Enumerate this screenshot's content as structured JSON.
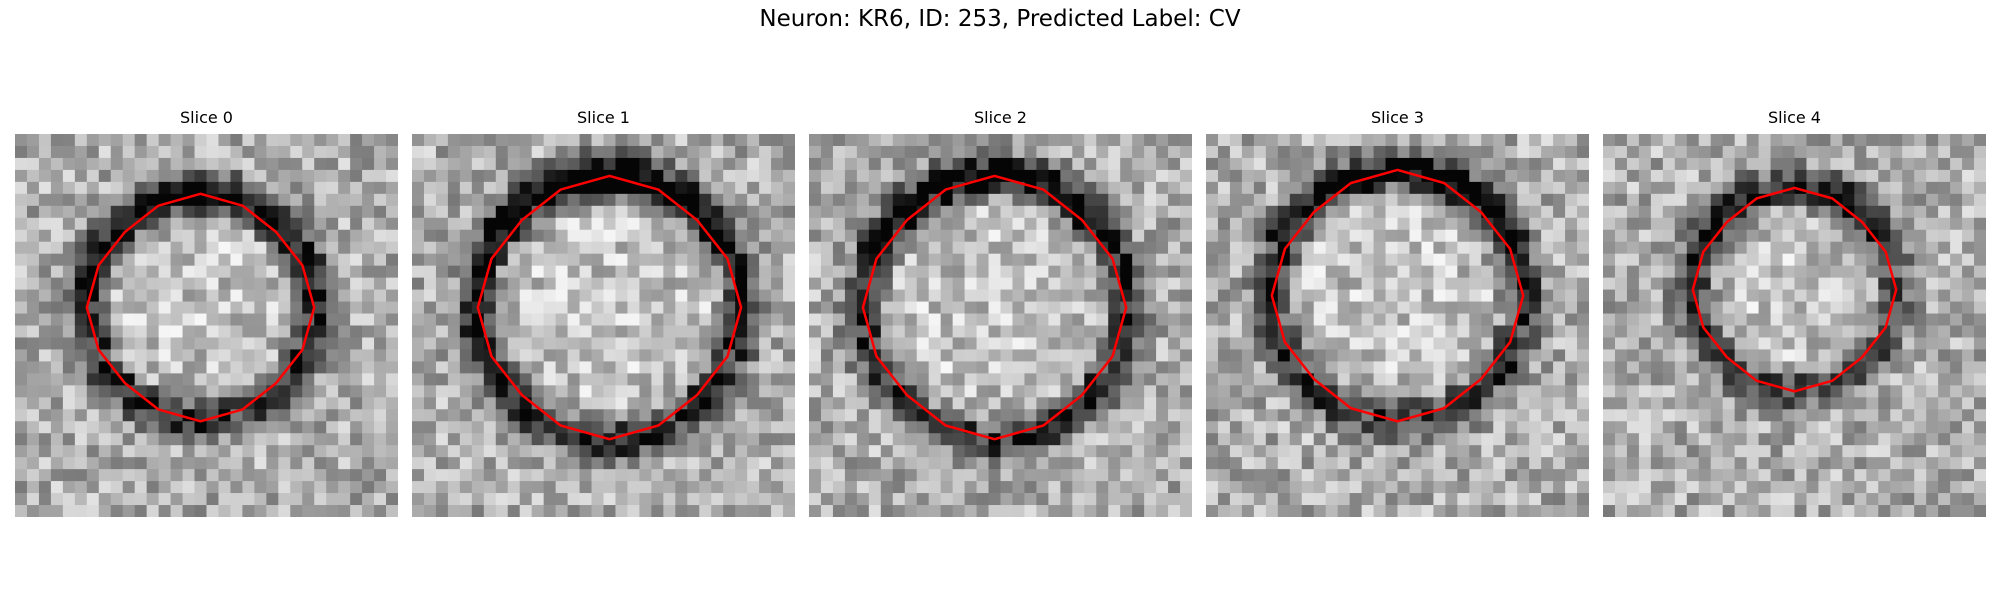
{
  "figure": {
    "title": "Neuron: KR6, ID: 253, Predicted Label: CV"
  },
  "contour_color": "#ff0000",
  "panels": [
    {
      "title": "Slice 0"
    },
    {
      "title": "Slice 1"
    },
    {
      "title": "Slice 2"
    },
    {
      "title": "Slice 3"
    },
    {
      "title": "Slice 4"
    }
  ]
}
